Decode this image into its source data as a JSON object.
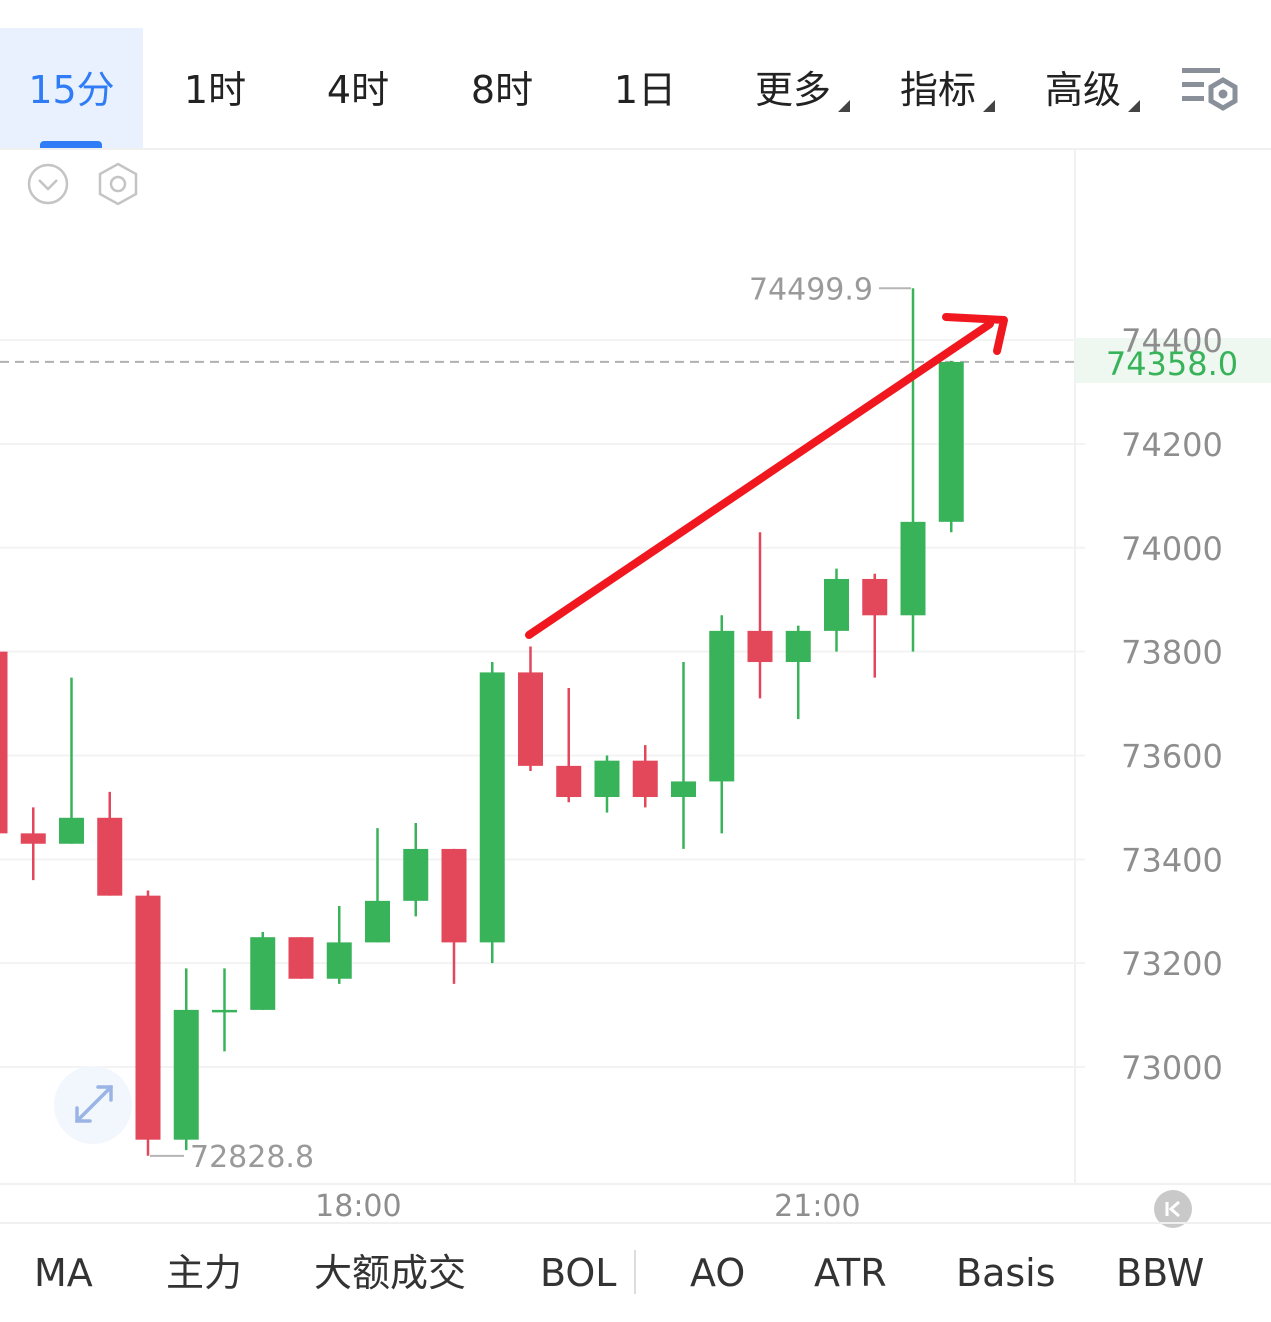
{
  "periods": {
    "items": [
      "15分",
      "1时",
      "4时",
      "8时",
      "1日"
    ],
    "active_index": 0,
    "menus": [
      "更多",
      "指标",
      "高级"
    ]
  },
  "icons": {
    "collapse": "chevron-down-circle-icon",
    "chart_settings": "hexagon-settings-icon",
    "layout_settings": "list-gear-icon",
    "expand": "expand-arrows-icon",
    "scroll_to_latest": "skip-to-latest-icon"
  },
  "colors": {
    "up": "#38b35a",
    "down": "#e2475a",
    "accent": "#2f7cf6",
    "annotation_arrow": "#f0171f"
  },
  "chart_data": {
    "type": "candlestick",
    "y_ticks": [
      "74400",
      "74200",
      "74000",
      "73800",
      "73600",
      "73400",
      "73200",
      "73000"
    ],
    "ylim": [
      72770,
      74720
    ],
    "x_tick_labels": [
      "18:00",
      "21:00"
    ],
    "x_tick_candle_index": [
      9.5,
      21.5
    ],
    "current_price": "74358.0",
    "high_label": "74499.9",
    "low_label": "72828.8",
    "candles": [
      {
        "o": 73800,
        "h": 73800,
        "l": 73450,
        "c": 73450
      },
      {
        "o": 73450,
        "h": 73500,
        "l": 73360,
        "c": 73430
      },
      {
        "o": 73430,
        "h": 73750,
        "l": 73430,
        "c": 73480
      },
      {
        "o": 73480,
        "h": 73530,
        "l": 73330,
        "c": 73330
      },
      {
        "o": 73330,
        "h": 73340,
        "l": 72829,
        "c": 72860
      },
      {
        "o": 72860,
        "h": 73190,
        "l": 72840,
        "c": 73110
      },
      {
        "o": 73110,
        "h": 73190,
        "l": 73030,
        "c": 73110
      },
      {
        "o": 73110,
        "h": 73260,
        "l": 73110,
        "c": 73250
      },
      {
        "o": 73250,
        "h": 73250,
        "l": 73170,
        "c": 73170
      },
      {
        "o": 73170,
        "h": 73310,
        "l": 73160,
        "c": 73240
      },
      {
        "o": 73240,
        "h": 73460,
        "l": 73240,
        "c": 73320
      },
      {
        "o": 73320,
        "h": 73470,
        "l": 73290,
        "c": 73420
      },
      {
        "o": 73420,
        "h": 73420,
        "l": 73160,
        "c": 73240
      },
      {
        "o": 73240,
        "h": 73780,
        "l": 73200,
        "c": 73760
      },
      {
        "o": 73760,
        "h": 73810,
        "l": 73570,
        "c": 73580
      },
      {
        "o": 73580,
        "h": 73730,
        "l": 73510,
        "c": 73520
      },
      {
        "o": 73520,
        "h": 73600,
        "l": 73490,
        "c": 73590
      },
      {
        "o": 73590,
        "h": 73620,
        "l": 73500,
        "c": 73520
      },
      {
        "o": 73520,
        "h": 73780,
        "l": 73420,
        "c": 73550
      },
      {
        "o": 73550,
        "h": 73870,
        "l": 73450,
        "c": 73840
      },
      {
        "o": 73840,
        "h": 74030,
        "l": 73710,
        "c": 73780
      },
      {
        "o": 73780,
        "h": 73850,
        "l": 73670,
        "c": 73840
      },
      {
        "o": 73840,
        "h": 73960,
        "l": 73800,
        "c": 73940
      },
      {
        "o": 73940,
        "h": 73950,
        "l": 73750,
        "c": 73870
      },
      {
        "o": 73870,
        "h": 74500,
        "l": 73800,
        "c": 74050
      },
      {
        "o": 74050,
        "h": 74360,
        "l": 74030,
        "c": 74358
      }
    ]
  },
  "indicators": {
    "items": [
      "MA",
      "主力",
      "大额成交",
      "BOL",
      "AO",
      "ATR",
      "Basis",
      "BBW"
    ]
  }
}
